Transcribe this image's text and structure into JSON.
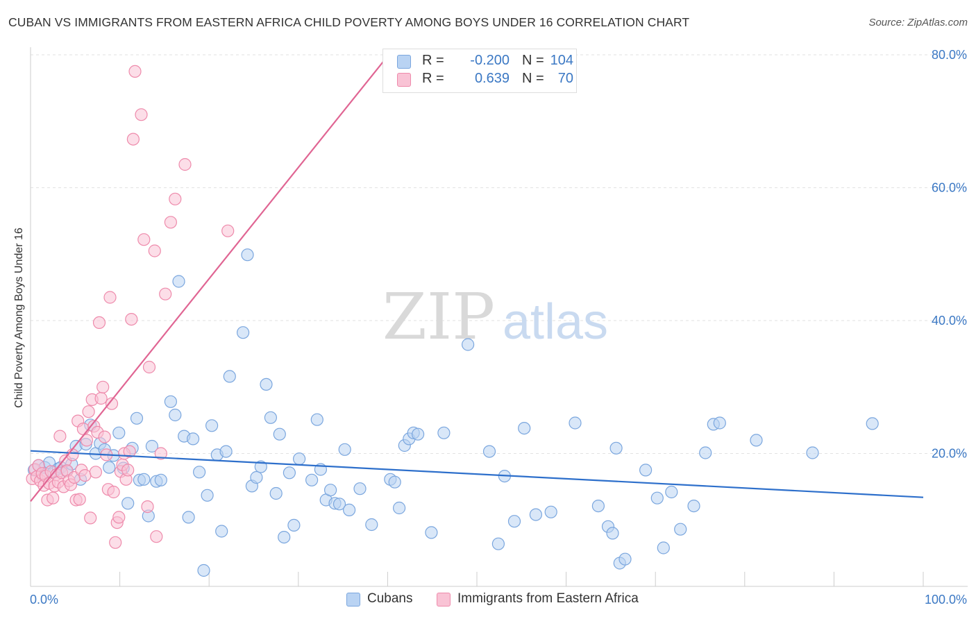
{
  "title": "CUBAN VS IMMIGRANTS FROM EASTERN AFRICA CHILD POVERTY AMONG BOYS UNDER 16 CORRELATION CHART",
  "source": "Source: ZipAtlas.com",
  "watermark": {
    "zip": "ZIP",
    "atlas": "atlas"
  },
  "legend_top": [
    {
      "r_label": "R =",
      "r_value": "-0.200",
      "n_label": "N =",
      "n_value": "104",
      "fill": "#b9d3f3",
      "stroke": "#7aa6de"
    },
    {
      "r_label": "R =",
      "r_value": "0.639",
      "n_label": "N =",
      "n_value": "70",
      "fill": "#f9c3d5",
      "stroke": "#ee8aab"
    }
  ],
  "legend_bottom": [
    {
      "label": "Cubans",
      "fill": "#b9d3f3",
      "stroke": "#7aa6de"
    },
    {
      "label": "Immigrants from Eastern Africa",
      "fill": "#f9c3d5",
      "stroke": "#ee8aab"
    }
  ],
  "chart_data": {
    "type": "scatter",
    "title": "CUBAN VS IMMIGRANTS FROM EASTERN AFRICA CHILD POVERTY AMONG BOYS UNDER 16 CORRELATION CHART",
    "xlabel": "",
    "ylabel": "Child Poverty Among Boys Under 16",
    "xlim": [
      0,
      100
    ],
    "ylim": [
      0,
      80
    ],
    "x_tick_labels": [
      "0.0%",
      "100.0%"
    ],
    "y_ticks": [
      20,
      40,
      60,
      80
    ],
    "y_tick_labels": [
      "20.0%",
      "40.0%",
      "60.0%",
      "80.0%"
    ],
    "grid": "horizontal dashed",
    "legend_position": "top-center",
    "colors": {
      "cubans": "#7aa6de",
      "cubans_line": "#2d6fcb",
      "eastern_africa": "#ee8aab",
      "eastern_africa_line": "#e06593",
      "tick_label": "#3b78c4"
    },
    "series": [
      {
        "name": "Cubans",
        "trend": {
          "x": [
            0,
            100
          ],
          "y": [
            20.4,
            13.4
          ]
        },
        "points": [
          [
            0.4,
            17.5
          ],
          [
            0.9,
            18.2
          ],
          [
            1.3,
            16.8
          ],
          [
            1.6,
            17.9
          ],
          [
            2.1,
            18.6
          ],
          [
            2.6,
            17.2
          ],
          [
            3.1,
            17.7
          ],
          [
            3.4,
            17.9
          ],
          [
            4.0,
            17.4
          ],
          [
            4.6,
            18.4
          ],
          [
            5.1,
            21.1
          ],
          [
            5.6,
            16.1
          ],
          [
            6.2,
            21.4
          ],
          [
            6.7,
            24.3
          ],
          [
            7.3,
            20.0
          ],
          [
            7.8,
            21.5
          ],
          [
            8.3,
            20.6
          ],
          [
            8.8,
            17.9
          ],
          [
            9.3,
            19.7
          ],
          [
            9.9,
            23.1
          ],
          [
            10.4,
            17.8
          ],
          [
            10.9,
            12.5
          ],
          [
            11.4,
            20.8
          ],
          [
            11.9,
            25.3
          ],
          [
            12.2,
            16.0
          ],
          [
            12.7,
            16.1
          ],
          [
            13.2,
            10.6
          ],
          [
            13.6,
            21.1
          ],
          [
            14.1,
            15.8
          ],
          [
            14.6,
            16.0
          ],
          [
            15.7,
            27.8
          ],
          [
            16.2,
            25.8
          ],
          [
            16.6,
            45.9
          ],
          [
            17.2,
            22.6
          ],
          [
            17.7,
            10.4
          ],
          [
            18.2,
            22.2
          ],
          [
            18.9,
            17.2
          ],
          [
            19.4,
            2.4
          ],
          [
            19.8,
            13.7
          ],
          [
            20.3,
            24.2
          ],
          [
            20.9,
            19.8
          ],
          [
            21.4,
            8.3
          ],
          [
            21.9,
            20.3
          ],
          [
            22.3,
            31.6
          ],
          [
            23.8,
            38.2
          ],
          [
            24.3,
            49.9
          ],
          [
            24.8,
            15.1
          ],
          [
            25.3,
            16.4
          ],
          [
            25.8,
            18.0
          ],
          [
            26.4,
            30.4
          ],
          [
            26.9,
            25.4
          ],
          [
            27.5,
            14.0
          ],
          [
            27.9,
            22.9
          ],
          [
            28.4,
            7.4
          ],
          [
            29.0,
            17.1
          ],
          [
            29.5,
            9.2
          ],
          [
            30.1,
            19.2
          ],
          [
            31.5,
            16.0
          ],
          [
            32.1,
            25.1
          ],
          [
            32.5,
            17.6
          ],
          [
            33.1,
            13.0
          ],
          [
            33.6,
            14.5
          ],
          [
            34.1,
            12.5
          ],
          [
            34.6,
            12.4
          ],
          [
            35.2,
            20.6
          ],
          [
            35.7,
            11.5
          ],
          [
            36.9,
            14.7
          ],
          [
            38.2,
            9.3
          ],
          [
            40.3,
            16.1
          ],
          [
            40.8,
            15.7
          ],
          [
            41.3,
            11.8
          ],
          [
            41.9,
            21.2
          ],
          [
            42.4,
            22.2
          ],
          [
            42.9,
            23.1
          ],
          [
            43.4,
            22.9
          ],
          [
            44.9,
            8.1
          ],
          [
            46.3,
            23.1
          ],
          [
            49.0,
            36.4
          ],
          [
            51.4,
            20.3
          ],
          [
            52.4,
            6.4
          ],
          [
            53.1,
            16.6
          ],
          [
            54.2,
            9.8
          ],
          [
            55.3,
            23.8
          ],
          [
            56.6,
            10.8
          ],
          [
            58.3,
            11.2
          ],
          [
            61.0,
            24.6
          ],
          [
            63.6,
            12.1
          ],
          [
            64.7,
            9.0
          ],
          [
            65.2,
            8.0
          ],
          [
            65.6,
            20.8
          ],
          [
            66.0,
            3.5
          ],
          [
            66.6,
            4.1
          ],
          [
            68.9,
            17.5
          ],
          [
            70.2,
            13.3
          ],
          [
            70.9,
            5.8
          ],
          [
            71.8,
            14.2
          ],
          [
            72.8,
            8.6
          ],
          [
            74.3,
            12.1
          ],
          [
            75.6,
            20.1
          ],
          [
            76.5,
            24.4
          ],
          [
            77.2,
            24.6
          ],
          [
            81.3,
            22.0
          ],
          [
            87.6,
            20.1
          ],
          [
            94.3,
            24.5
          ]
        ]
      },
      {
        "name": "Immigrants from Eastern Africa",
        "trend": {
          "x": [
            0,
            40
          ],
          "y": [
            12.8,
            79.8
          ]
        },
        "points": [
          [
            0.2,
            16.2
          ],
          [
            0.5,
            17.6
          ],
          [
            0.7,
            16.5
          ],
          [
            0.9,
            18.2
          ],
          [
            1.1,
            15.9
          ],
          [
            1.3,
            17.0
          ],
          [
            1.5,
            15.2
          ],
          [
            1.7,
            16.6
          ],
          [
            1.9,
            13.0
          ],
          [
            2.1,
            15.5
          ],
          [
            2.3,
            17.3
          ],
          [
            2.5,
            13.3
          ],
          [
            2.7,
            15.1
          ],
          [
            2.9,
            16.8
          ],
          [
            3.1,
            15.7
          ],
          [
            3.3,
            22.6
          ],
          [
            3.5,
            17.1
          ],
          [
            3.7,
            15.0
          ],
          [
            3.9,
            18.9
          ],
          [
            4.1,
            17.4
          ],
          [
            4.3,
            15.9
          ],
          [
            4.5,
            15.3
          ],
          [
            4.7,
            19.8
          ],
          [
            4.9,
            16.4
          ],
          [
            5.1,
            13.0
          ],
          [
            5.3,
            24.9
          ],
          [
            5.5,
            13.1
          ],
          [
            5.7,
            17.5
          ],
          [
            5.9,
            23.7
          ],
          [
            6.1,
            16.7
          ],
          [
            6.3,
            22.0
          ],
          [
            6.5,
            26.3
          ],
          [
            6.7,
            10.3
          ],
          [
            6.9,
            28.1
          ],
          [
            7.1,
            24.1
          ],
          [
            7.3,
            17.2
          ],
          [
            7.5,
            23.2
          ],
          [
            7.7,
            39.7
          ],
          [
            7.9,
            28.3
          ],
          [
            8.1,
            30.0
          ],
          [
            8.3,
            22.5
          ],
          [
            8.5,
            19.8
          ],
          [
            8.7,
            14.6
          ],
          [
            8.9,
            43.5
          ],
          [
            9.1,
            27.5
          ],
          [
            9.3,
            14.2
          ],
          [
            9.5,
            6.6
          ],
          [
            9.7,
            9.6
          ],
          [
            9.9,
            10.4
          ],
          [
            10.1,
            17.3
          ],
          [
            10.3,
            18.3
          ],
          [
            10.5,
            20.0
          ],
          [
            10.7,
            16.1
          ],
          [
            10.9,
            17.5
          ],
          [
            11.1,
            20.3
          ],
          [
            11.3,
            40.2
          ],
          [
            11.5,
            67.3
          ],
          [
            11.7,
            77.5
          ],
          [
            12.4,
            71.0
          ],
          [
            12.7,
            52.2
          ],
          [
            13.1,
            12.0
          ],
          [
            13.3,
            33.0
          ],
          [
            13.9,
            50.5
          ],
          [
            14.1,
            7.5
          ],
          [
            14.6,
            20.0
          ],
          [
            15.1,
            44.0
          ],
          [
            15.7,
            54.8
          ],
          [
            16.2,
            58.3
          ],
          [
            17.3,
            63.5
          ],
          [
            22.1,
            53.5
          ]
        ]
      }
    ]
  }
}
